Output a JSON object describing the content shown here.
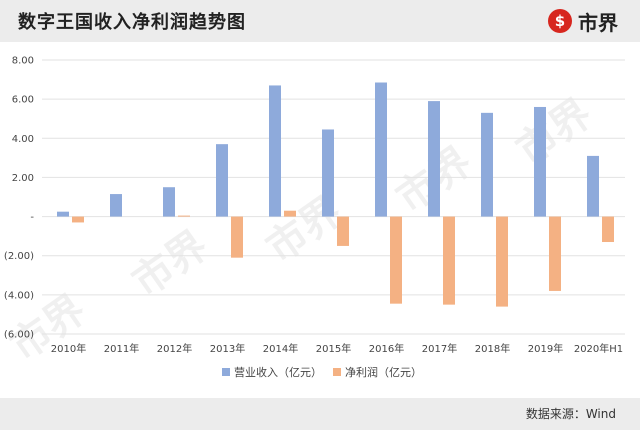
{
  "header": {
    "title": "数字王国收入净利润趋势图",
    "brand_icon": "$",
    "brand_text": "市界"
  },
  "footer": {
    "source": "数据来源：Wind"
  },
  "watermark": "市界",
  "colors": {
    "revenue": "#8eaadb",
    "net_profit": "#f4b183",
    "header_bg": "#ececec",
    "brand_red": "#d7261e"
  },
  "chart_data": {
    "type": "bar",
    "categories": [
      "2010年",
      "2011年",
      "2012年",
      "2013年",
      "2014年",
      "2015年",
      "2016年",
      "2017年",
      "2018年",
      "2019年",
      "2020年H1"
    ],
    "series": [
      {
        "name": "营业收入（亿元）",
        "values": [
          0.25,
          1.15,
          1.5,
          3.7,
          6.7,
          4.45,
          6.85,
          5.9,
          5.3,
          5.6,
          3.1
        ]
      },
      {
        "name": "净利润（亿元）",
        "values": [
          -0.3,
          0.0,
          0.05,
          -2.1,
          0.3,
          -1.5,
          -4.45,
          -4.5,
          -4.6,
          -3.8,
          -1.3
        ]
      }
    ],
    "ylim": [
      -6,
      8
    ],
    "y_ticks": [
      8,
      6,
      4,
      2,
      0,
      -2,
      -4,
      -6
    ],
    "y_tick_labels": [
      "8.00",
      "6.00",
      "4.00",
      "2.00",
      "-",
      "(2.00)",
      "(4.00)",
      "(6.00)"
    ],
    "grid": true,
    "legend_position": "bottom",
    "xlabel": "",
    "ylabel": ""
  }
}
